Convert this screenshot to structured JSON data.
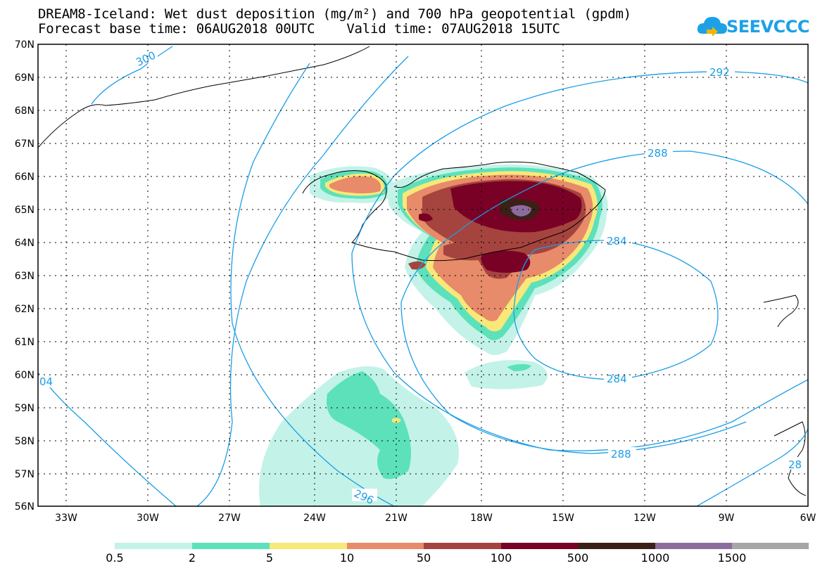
{
  "title_line1": "DREAM8-Iceland: Wet dust deposition (mg/m²) and 700 hPa geopotential (gpdm)",
  "title_line2": "Forecast base time: 06AUG2018 00UTC    Valid time: 07AUG2018 15UTC",
  "logo_text": "SEEVCCC",
  "lat_labels": [
    "70N",
    "69N",
    "68N",
    "67N",
    "66N",
    "65N",
    "64N",
    "63N",
    "62N",
    "61N",
    "60N",
    "59N",
    "58N",
    "57N",
    "56N"
  ],
  "lon_labels": [
    "33W",
    "30W",
    "27W",
    "24W",
    "21W",
    "18W",
    "15W",
    "12W",
    "9W",
    "6W"
  ],
  "contour_labels": {
    "c300": "300",
    "c292": "292",
    "c288a": "288",
    "c288b": "288",
    "c284a": "284",
    "c284b": "284",
    "c296": "296",
    "c304": "04",
    "c28x": "28"
  },
  "legend": {
    "labels": [
      "0.5",
      "2",
      "5",
      "10",
      "50",
      "100",
      "500",
      "1000",
      "1500"
    ],
    "colors": [
      "#c3f2e8",
      "#5ce1bb",
      "#f8e879",
      "#e78b6a",
      "#a5443e",
      "#7a0126",
      "#3b2018",
      "#8c6c9e",
      "#a6a6a6"
    ]
  },
  "colors": {
    "contour": "#1a9ee6",
    "frame": "#000000"
  }
}
